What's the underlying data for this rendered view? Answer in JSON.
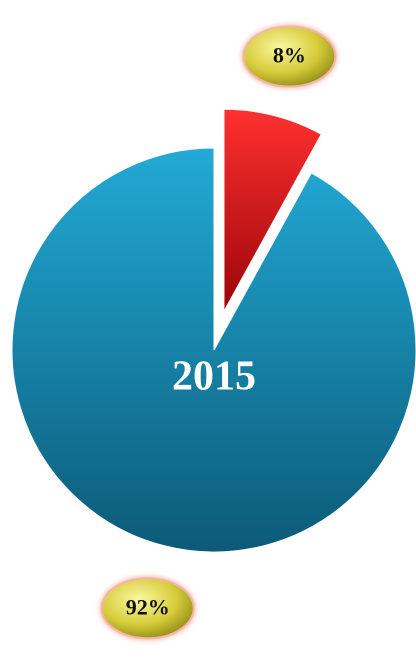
{
  "chart_data": {
    "type": "pie",
    "title": "2015",
    "values": [
      8,
      92
    ],
    "value_labels": [
      "8%",
      "92%"
    ],
    "colors": [
      "#d8141a",
      "#168db5"
    ]
  }
}
